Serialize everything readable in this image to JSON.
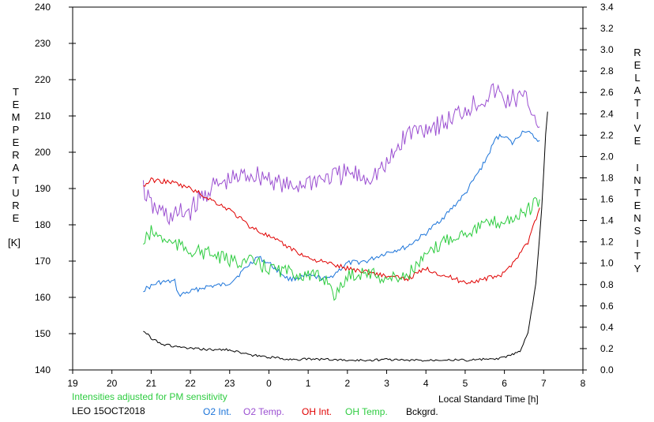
{
  "chart_data": {
    "type": "line",
    "left_axis": {
      "label_letters": [
        "T",
        "E",
        "M",
        "P",
        "E",
        "R",
        "A",
        "T",
        "U",
        "R",
        "E"
      ],
      "unit": "[K]",
      "ticks": [
        "140",
        "150",
        "160",
        "170",
        "180",
        "190",
        "200",
        "210",
        "220",
        "230",
        "240"
      ],
      "range": [
        140,
        240
      ]
    },
    "right_axis": {
      "label_word1": [
        "R",
        "E",
        "L",
        "A",
        "T",
        "I",
        "V",
        "E"
      ],
      "label_word2": [
        "I",
        "N",
        "T",
        "E",
        "N",
        "S",
        "I",
        "T",
        "Y"
      ],
      "ticks": [
        "0.0",
        "0.2",
        "0.4",
        "0.6",
        "0.8",
        "1.0",
        "1.2",
        "1.4",
        "1.6",
        "1.8",
        "2.0",
        "2.2",
        "2.4",
        "2.6",
        "2.8",
        "3.0",
        "3.2",
        "3.4"
      ],
      "range": [
        0,
        3.4
      ]
    },
    "x_axis": {
      "label": "Local Standard Time [h]",
      "ticks": [
        "19",
        "20",
        "21",
        "22",
        "23",
        "0",
        "1",
        "2",
        "3",
        "4",
        "5",
        "6",
        "7",
        "8"
      ],
      "range_hours": [
        19,
        32
      ]
    },
    "note": "Intensities adjusted for PM sensitivity",
    "station": "LEO 15OCT2018",
    "series": [
      {
        "name": "O2 Int.",
        "color": "#1a73d9",
        "axis": "right",
        "x": [
          20.8,
          21.2,
          21.6,
          21.7,
          22.4,
          22.9,
          23.0,
          23.2,
          23.7,
          24.0,
          24.5,
          25.0,
          25.5,
          26.0,
          26.5,
          27.0,
          27.5,
          28.0,
          28.5,
          29.0,
          29.5,
          29.8,
          30.0,
          30.2,
          30.5,
          30.8,
          30.9
        ],
        "y": [
          0.75,
          0.82,
          0.83,
          0.7,
          0.78,
          0.8,
          0.82,
          0.88,
          1.06,
          1.0,
          0.85,
          0.88,
          0.85,
          1.0,
          1.02,
          1.1,
          1.15,
          1.28,
          1.45,
          1.65,
          1.95,
          2.18,
          2.2,
          2.12,
          2.25,
          2.17,
          2.15
        ]
      },
      {
        "name": "O2 Temp.",
        "color": "#9b4fd1",
        "axis": "left",
        "x": [
          20.8,
          21.0,
          21.5,
          22.0,
          22.5,
          23.0,
          23.5,
          24.0,
          24.5,
          25.0,
          25.5,
          26.0,
          26.5,
          27.0,
          27.5,
          28.0,
          28.5,
          29.0,
          29.5,
          29.8,
          30.0,
          30.3,
          30.6,
          30.9
        ],
        "y": [
          190,
          185,
          182,
          184,
          190,
          192,
          194,
          193,
          190,
          192,
          193,
          194,
          193,
          196,
          205,
          207,
          208,
          212,
          215,
          217,
          214,
          215,
          214,
          207
        ]
      },
      {
        "name": "OH Int.",
        "color": "#e00000",
        "axis": "right",
        "x": [
          20.8,
          21.0,
          21.5,
          22.0,
          22.5,
          23.0,
          23.5,
          24.0,
          24.5,
          25.0,
          25.5,
          26.0,
          26.5,
          27.0,
          27.5,
          28.0,
          28.5,
          29.0,
          29.5,
          30.0,
          30.3,
          30.6,
          30.9
        ],
        "y": [
          1.72,
          1.78,
          1.76,
          1.7,
          1.6,
          1.5,
          1.35,
          1.25,
          1.15,
          1.05,
          1.0,
          0.95,
          0.92,
          0.88,
          0.85,
          0.95,
          0.88,
          0.82,
          0.85,
          0.9,
          1.05,
          1.2,
          1.52
        ]
      },
      {
        "name": "OH Temp.",
        "color": "#2ecc40",
        "axis": "left",
        "x": [
          20.8,
          21.0,
          21.5,
          22.0,
          22.5,
          23.0,
          23.5,
          24.0,
          24.5,
          25.0,
          25.5,
          25.7,
          26.0,
          26.5,
          27.0,
          27.5,
          28.0,
          28.5,
          29.0,
          29.5,
          30.0,
          30.5,
          30.9
        ],
        "y": [
          175,
          178,
          175,
          173,
          172,
          170,
          170,
          168,
          167,
          166,
          165,
          160,
          166,
          167,
          165,
          166,
          171,
          176,
          178,
          180,
          181,
          183,
          187
        ]
      },
      {
        "name": "Bckgrd.",
        "color": "#000000",
        "axis": "right",
        "x": [
          20.8,
          21.0,
          21.3,
          21.6,
          22.0,
          22.5,
          23.0,
          23.5,
          24.0,
          24.5,
          25.0,
          25.5,
          26.0,
          26.5,
          27.0,
          27.5,
          28.0,
          28.5,
          29.0,
          29.5,
          29.8,
          30.0,
          30.4,
          30.6,
          30.8,
          30.95,
          31.05,
          31.1
        ],
        "y": [
          0.37,
          0.3,
          0.24,
          0.22,
          0.2,
          0.19,
          0.19,
          0.14,
          0.12,
          0.1,
          0.1,
          0.1,
          0.09,
          0.09,
          0.1,
          0.09,
          0.09,
          0.1,
          0.09,
          0.1,
          0.1,
          0.12,
          0.17,
          0.35,
          0.8,
          1.5,
          2.2,
          2.42
        ]
      }
    ]
  }
}
